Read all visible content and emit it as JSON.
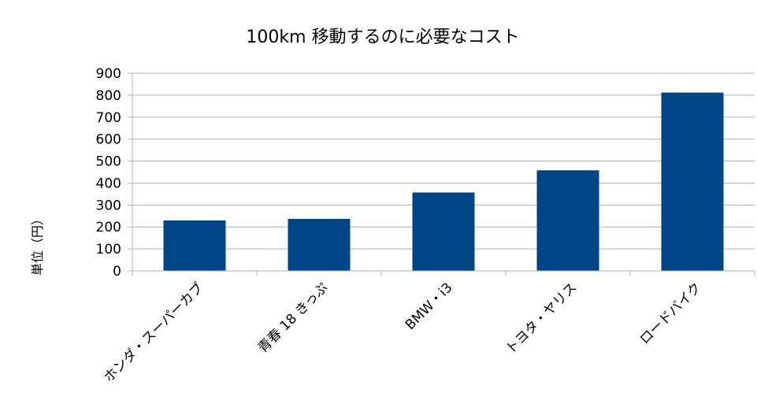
{
  "chart_data": {
    "type": "bar",
    "title": "100km 移動するのに必要なコスト",
    "xlabel": "",
    "ylabel": "単位（円）",
    "categories": [
      "ホンダ・スーパーカブ",
      "青春 18 きっぷ",
      "BMW・i3",
      "トヨタ・ヤリス",
      "ロードバイク"
    ],
    "series": [
      {
        "values": [
          230,
          237,
          357,
          458,
          812
        ]
      }
    ],
    "ylim": [
      0,
      900
    ],
    "yticks": [
      "0",
      "100",
      "200",
      "300",
      "400",
      "500",
      "600",
      "700",
      "800",
      "900"
    ],
    "grid": true,
    "legend": "none",
    "colors": {
      "bar": "#004586",
      "grid": "#b3b3b3"
    }
  }
}
